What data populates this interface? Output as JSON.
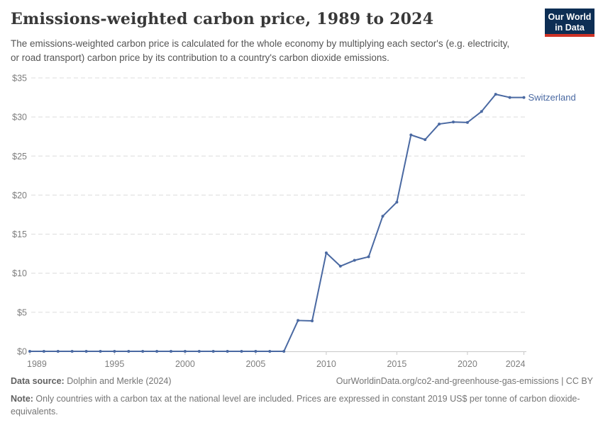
{
  "header": {
    "title": "Emissions-weighted carbon price, 1989 to 2024",
    "subtitle": "The emissions-weighted carbon price is calculated for the whole economy by multiplying each sector's (e.g. electricity, or road transport) carbon price by its contribution to a country's carbon dioxide emissions.",
    "logo": {
      "line1": "Our World",
      "line2": "in Data",
      "bg_color": "#0d2e54",
      "accent_color": "#cf3326"
    }
  },
  "chart_data": {
    "type": "line",
    "title": "Emissions-weighted carbon price, 1989 to 2024",
    "x": [
      1989,
      1990,
      1991,
      1992,
      1993,
      1994,
      1995,
      1996,
      1997,
      1998,
      1999,
      2000,
      2001,
      2002,
      2003,
      2004,
      2005,
      2006,
      2007,
      2008,
      2009,
      2010,
      2011,
      2012,
      2013,
      2014,
      2015,
      2016,
      2017,
      2018,
      2019,
      2020,
      2021,
      2022,
      2023,
      2024
    ],
    "series": [
      {
        "name": "Switzerland",
        "color": "#4a69a2",
        "values": [
          0,
          0,
          0,
          0,
          0,
          0,
          0,
          0,
          0,
          0,
          0,
          0,
          0,
          0,
          0,
          0,
          0,
          0,
          0,
          3.95,
          3.9,
          12.6,
          10.9,
          11.65,
          12.1,
          17.3,
          19.1,
          27.7,
          27.1,
          29.1,
          29.35,
          29.3,
          30.7,
          32.9,
          32.5,
          32.5
        ]
      }
    ],
    "xlabel": "",
    "ylabel": "",
    "ylim": [
      0,
      35
    ],
    "yticks": [
      0,
      5,
      10,
      15,
      20,
      25,
      30,
      35
    ],
    "ytick_prefix": "$",
    "xticks": [
      1989,
      1995,
      2000,
      2005,
      2010,
      2015,
      2020,
      2024
    ],
    "grid": "horizontal-dashed",
    "legend_position": "end-of-line",
    "units": "constant 2019 US$ per tonne of CO2-equivalents"
  },
  "footer": {
    "source_label": "Data source:",
    "source_value": " Dolphin and Merkle (2024)",
    "citation": "OurWorldinData.org/co2-and-greenhouse-gas-emissions | CC BY",
    "note_label": "Note:",
    "note_value": " Only countries with a carbon tax at the national level are included. Prices are expressed in constant 2019 US$ per tonne of carbon dioxide-equivalents."
  }
}
